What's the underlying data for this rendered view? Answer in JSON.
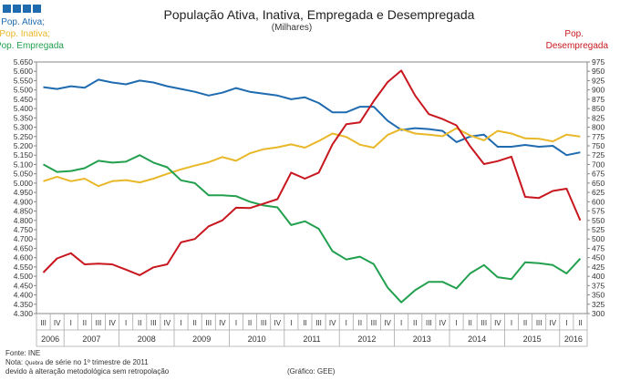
{
  "header": {
    "logo_label": "INE logo squares"
  },
  "chart_data": {
    "type": "line",
    "title": "População Ativa, Inativa, Empregada e Desempregada",
    "subtitle": "(Milhares)",
    "left_axis": {
      "ylim": [
        4300,
        5650
      ],
      "step": 50,
      "ticks": [
        "4.300",
        "4.350",
        "4.400",
        "4.450",
        "4.500",
        "4.550",
        "4.600",
        "4.650",
        "4.700",
        "4.750",
        "4.800",
        "4.850",
        "4.900",
        "4.950",
        "5.000",
        "5.050",
        "5.100",
        "5.150",
        "5.200",
        "5.250",
        "5.300",
        "5.350",
        "5.400",
        "5.450",
        "5.500",
        "5.550",
        "5.600",
        "5.650"
      ]
    },
    "right_axis": {
      "ylim": [
        300,
        975
      ],
      "step": 25,
      "ticks": [
        "300",
        "325",
        "350",
        "375",
        "400",
        "425",
        "450",
        "475",
        "500",
        "525",
        "550",
        "575",
        "600",
        "625",
        "650",
        "675",
        "700",
        "725",
        "750",
        "775",
        "800",
        "825",
        "850",
        "875",
        "900",
        "925",
        "950",
        "975"
      ]
    },
    "quarters": [
      "III",
      "IV",
      "I",
      "II",
      "III",
      "IV",
      "I",
      "II",
      "III",
      "IV",
      "I",
      "II",
      "III",
      "IV",
      "I",
      "II",
      "III",
      "IV",
      "I",
      "II",
      "III",
      "IV",
      "I",
      "II",
      "III",
      "IV",
      "I",
      "II",
      "III",
      "IV",
      "I",
      "II",
      "III",
      "IV",
      "I",
      "II",
      "III",
      "IV",
      "I",
      "II"
    ],
    "years": [
      {
        "label": "2006",
        "start": 0,
        "count": 2
      },
      {
        "label": "2007",
        "start": 2,
        "count": 4
      },
      {
        "label": "2008",
        "start": 6,
        "count": 4
      },
      {
        "label": "2009",
        "start": 10,
        "count": 4
      },
      {
        "label": "2010",
        "start": 14,
        "count": 4
      },
      {
        "label": "2011",
        "start": 18,
        "count": 4
      },
      {
        "label": "2012",
        "start": 22,
        "count": 4
      },
      {
        "label": "2013",
        "start": 26,
        "count": 4
      },
      {
        "label": "2014",
        "start": 30,
        "count": 4
      },
      {
        "label": "2015",
        "start": 34,
        "count": 4
      },
      {
        "label": "2016",
        "start": 38,
        "count": 2
      }
    ],
    "series": [
      {
        "name": "Pop. Ativa;",
        "axis": "left",
        "color": "#1f6bb0",
        "values": [
          5515,
          5505,
          5520,
          5512,
          5555,
          5540,
          5530,
          5550,
          5540,
          5520,
          5505,
          5490,
          5470,
          5485,
          5510,
          5490,
          5480,
          5470,
          5450,
          5460,
          5430,
          5380,
          5380,
          5410,
          5410,
          5335,
          5285,
          5295,
          5290,
          5280,
          5220,
          5250,
          5260,
          5195,
          5195,
          5205,
          5195,
          5200,
          5150,
          5165
        ]
      },
      {
        "name": "Pop. Inativa;",
        "axis": "right",
        "color": "#e8b829",
        "values": [
          655,
          667,
          655,
          662,
          642,
          655,
          658,
          652,
          662,
          675,
          687,
          697,
          706,
          720,
          710,
          730,
          741,
          746,
          754,
          745,
          763,
          783,
          774,
          753,
          745,
          779,
          795,
          783,
          780,
          776,
          797,
          778,
          765,
          790,
          783,
          770,
          769,
          762,
          780,
          775
        ]
      },
      {
        "name": "Pop. Empregada",
        "axis": "left",
        "color": "#22a04e",
        "values": [
          5100,
          5060,
          5065,
          5080,
          5120,
          5110,
          5115,
          5150,
          5110,
          5085,
          5015,
          5000,
          4935,
          4935,
          4930,
          4900,
          4880,
          4870,
          4775,
          4795,
          4755,
          4635,
          4590,
          4605,
          4565,
          4440,
          4360,
          4425,
          4470,
          4470,
          4435,
          4515,
          4560,
          4495,
          4485,
          4575,
          4570,
          4560,
          4515,
          4595
        ]
      },
      {
        "name": "Pop. Desempregada",
        "axis": "right",
        "color": "#c8171e",
        "values": [
          410,
          448,
          462,
          432,
          434,
          432,
          418,
          403,
          424,
          432,
          491,
          500,
          534,
          550,
          584,
          583,
          595,
          607,
          678,
          662,
          678,
          754,
          808,
          813,
          870,
          921,
          952,
          885,
          835,
          822,
          805,
          749,
          701,
          709,
          721,
          613,
          610,
          629,
          635,
          550
        ]
      }
    ],
    "legend": [
      {
        "text": "Pop. Ativa;",
        "color": "#1f6bb0"
      },
      {
        "text": "Pop. Inativa;",
        "color": "#e8b829"
      },
      {
        "text": "Pop. Empregada",
        "color": "#22a04e"
      }
    ],
    "legend_right": [
      "Pop.",
      "Desempregada"
    ],
    "grid": false
  },
  "footer": {
    "source": "Fonte: INE",
    "note_prefix": "Nota: ",
    "note_small": "Quebra",
    "note_suffix": " de série no 1º trimestre de 2011",
    "note_line2": "devido à alteração metodológica sem retropolação",
    "credit": "(Gráfico: GEE)"
  }
}
